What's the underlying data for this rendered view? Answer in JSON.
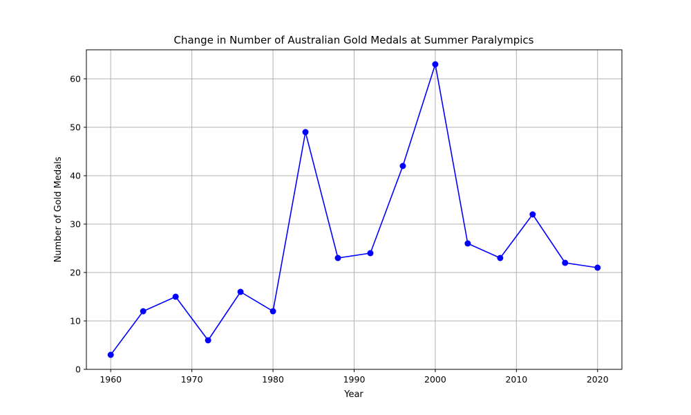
{
  "chart_data": {
    "type": "line",
    "title": "Change in Number of Australian Gold Medals at Summer Paralympics",
    "xlabel": "Year",
    "ylabel": "Number of Gold Medals",
    "xlim": [
      1957,
      2023
    ],
    "ylim": [
      0,
      66
    ],
    "xticks": [
      1960,
      1970,
      1980,
      1990,
      2000,
      2010,
      2020
    ],
    "yticks": [
      0,
      10,
      20,
      30,
      40,
      50,
      60
    ],
    "grid": true,
    "color": "#0000ff",
    "marker": "circle",
    "series": [
      {
        "x": [
          1960,
          1964,
          1968,
          1972,
          1976,
          1980,
          1984,
          1988,
          1992,
          1996,
          2000,
          2004,
          2008,
          2012,
          2016,
          2020
        ],
        "y": [
          3,
          12,
          15,
          6,
          16,
          12,
          49,
          23,
          24,
          42,
          63,
          26,
          23,
          32,
          22,
          21
        ]
      }
    ]
  }
}
